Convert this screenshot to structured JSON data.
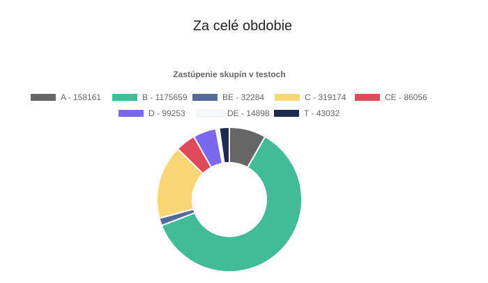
{
  "page_title": "Za celé obdobie",
  "chart_data": {
    "type": "doughnut",
    "title": "Zastúpenie skupín v testoch",
    "categories": [
      "A - 158161",
      "B - 1175659",
      "BE - 32284",
      "C - 319174",
      "CE - 86056",
      "D - 99253",
      "DE - 14898",
      "T - 43032"
    ],
    "values": [
      158161,
      1175659,
      32284,
      319174,
      86056,
      99253,
      14898,
      43032
    ],
    "colors": [
      "#666666",
      "#41bc96",
      "#546a9c",
      "#f9d678",
      "#e0495a",
      "#7b68ee",
      "#f8f9fa",
      "#1e2a4f"
    ],
    "legend": "top"
  }
}
